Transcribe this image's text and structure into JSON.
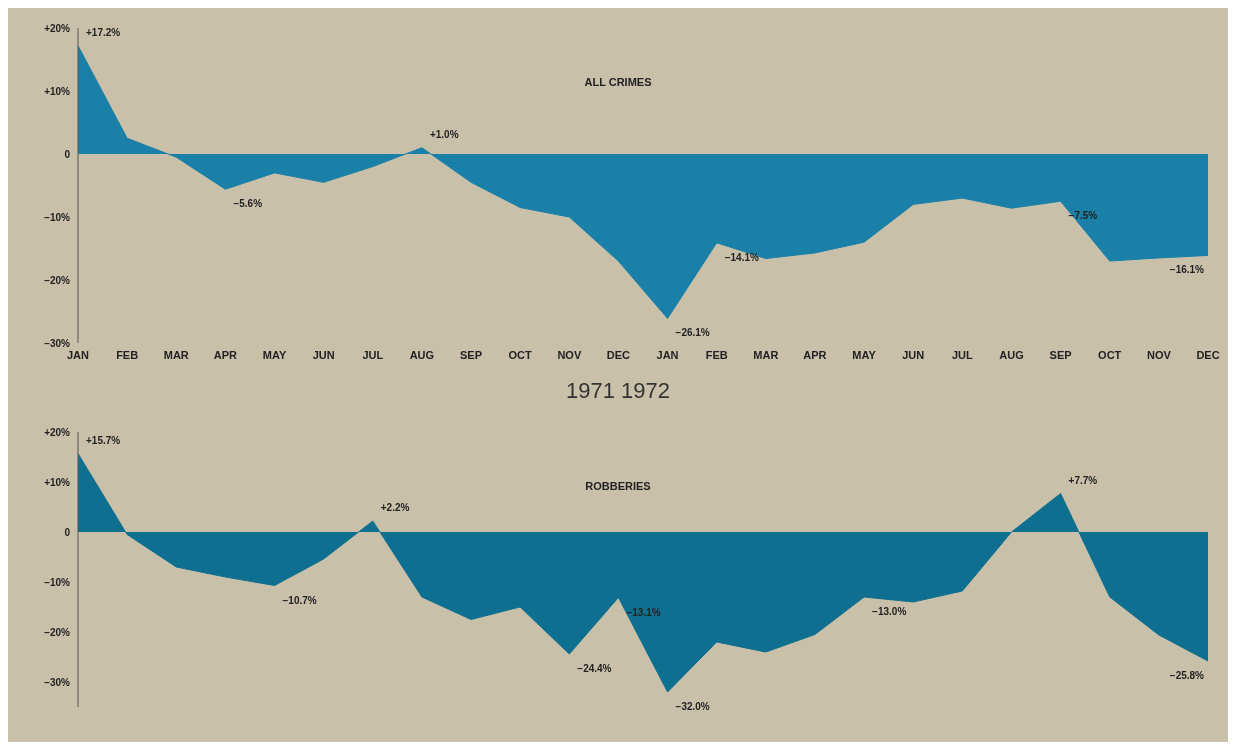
{
  "chart_data": [
    {
      "type": "area",
      "title": "ALL CRIMES",
      "categories": [
        "JAN",
        "FEB",
        "MAR",
        "APR",
        "MAY",
        "JUN",
        "JUL",
        "AUG",
        "SEP",
        "OCT",
        "NOV",
        "DEC",
        "JAN",
        "FEB",
        "MAR",
        "APR",
        "MAY",
        "JUN",
        "JUL",
        "AUG",
        "SEP",
        "OCT",
        "NOV",
        "DEC"
      ],
      "values": [
        17.2,
        2.5,
        -0.5,
        -5.6,
        -3,
        -4.5,
        -2,
        1.0,
        -4.5,
        -8.5,
        -10,
        -17,
        -26.1,
        -14.1,
        -16.6,
        -15.7,
        -14,
        -8,
        -7,
        -8.6,
        -7.5,
        -17,
        -16.5,
        -16.1
      ],
      "value_labels": [
        "+17.2%",
        null,
        null,
        "−5.6%",
        null,
        null,
        null,
        "+1.0%",
        null,
        null,
        null,
        null,
        "−26.1%",
        "−14.1%",
        null,
        null,
        null,
        null,
        null,
        null,
        "−7.5%",
        null,
        null,
        "−16.1%"
      ],
      "color": "#1a80a8",
      "ylim": [
        -30,
        20
      ],
      "yticks": [
        {
          "value": 20,
          "label": "+20%"
        },
        {
          "value": 10,
          "label": "+10%"
        },
        0,
        {
          "value": -10,
          "label": "−10%"
        },
        {
          "value": -20,
          "label": "−20%"
        },
        {
          "value": -30,
          "label": "−30%"
        }
      ],
      "annotations": [
        "1971 1972"
      ]
    },
    {
      "type": "area",
      "title": "ROBBERIES",
      "categories": [
        null,
        null,
        null,
        null,
        null,
        null,
        null,
        null,
        null,
        null,
        null,
        null,
        null,
        null,
        null,
        null,
        null,
        null,
        null,
        null,
        null,
        null,
        null,
        null
      ],
      "values": [
        15.7,
        -0.5,
        -7,
        -9,
        -10.7,
        -5.4,
        2.2,
        -13,
        -17.5,
        -15,
        -24.4,
        -13.1,
        -32.0,
        -22,
        -24,
        -20.5,
        -13.0,
        -14,
        -11.8,
        0,
        7.7,
        -13,
        -20.6,
        -25.8
      ],
      "value_labels": [
        "+15.7%",
        null,
        null,
        null,
        "−10.7%",
        null,
        "+2.2%",
        null,
        null,
        null,
        "−24.4%",
        "−13.1%",
        "−32.0%",
        null,
        null,
        null,
        "−13.0%",
        null,
        null,
        null,
        "+7.7%",
        null,
        null,
        "−25.8%"
      ],
      "color": "#0f6f90",
      "ylim": [
        -35,
        20
      ],
      "yticks": [
        {
          "value": 20,
          "label": "+20%"
        },
        {
          "value": 10,
          "label": "+10%"
        },
        0,
        {
          "value": -10,
          "label": "−10%"
        },
        {
          "value": -20,
          "label": "−20%"
        },
        {
          "value": -30,
          "label": "−30%"
        }
      ]
    }
  ]
}
